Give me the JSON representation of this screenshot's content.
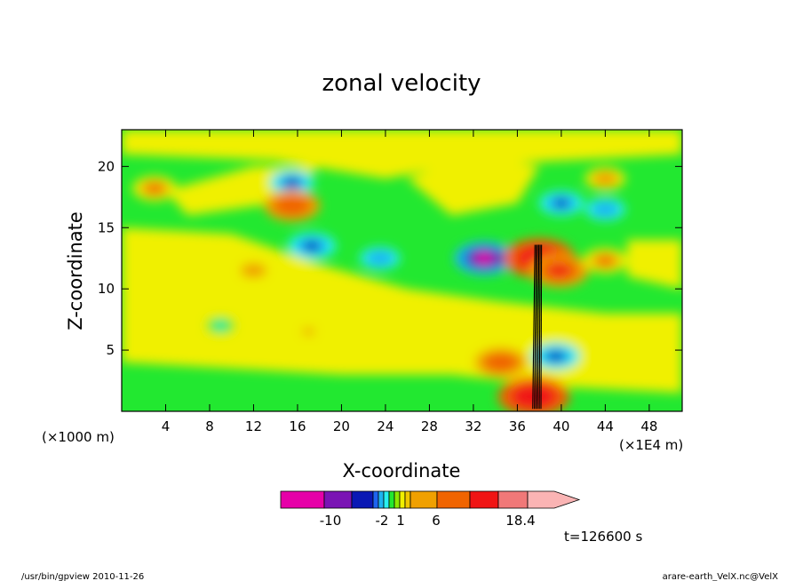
{
  "chart_data": {
    "type": "heatmap",
    "title": "zonal velocity",
    "xlabel": "X-coordinate",
    "ylabel": "Z-coordinate",
    "x_unit": "(×1E4 m)",
    "y_unit": "(×1000 m)",
    "xlim": [
      0,
      51
    ],
    "ylim": [
      0,
      23
    ],
    "x_ticks": [
      4,
      8,
      12,
      16,
      20,
      24,
      28,
      32,
      36,
      40,
      44,
      48
    ],
    "y_ticks": [
      5,
      10,
      15,
      20
    ],
    "colorbar": {
      "colors": [
        "#e600a8",
        "#7a14b4",
        "#0a18b4",
        "#1e64f0",
        "#1eb4f0",
        "#28f0f0",
        "#22e830",
        "#8ce800",
        "#f0f000",
        "#f0c800",
        "#f0a000",
        "#f06400",
        "#f01414",
        "#f07878",
        "#fab4b4"
      ],
      "tick_labels": [
        "-10",
        "-2",
        "1",
        "6",
        "18.4"
      ],
      "tick_values": [
        -10,
        -2,
        1,
        6,
        18.4
      ],
      "max": 18.4
    },
    "time_label": "t=126600 s",
    "features": [
      {
        "x": 3,
        "z": 18.2,
        "value": 5
      },
      {
        "x": 15.5,
        "z": 18.7,
        "value": -5
      },
      {
        "x": 15.5,
        "z": 16.8,
        "value": 8
      },
      {
        "x": 17.3,
        "z": 13.5,
        "value": -6
      },
      {
        "x": 23.5,
        "z": 12.5,
        "value": -4
      },
      {
        "x": 33,
        "z": 12.5,
        "value": -9
      },
      {
        "x": 38,
        "z": 12.5,
        "value": 12
      },
      {
        "x": 39.8,
        "z": 11.5,
        "value": 9
      },
      {
        "x": 44,
        "z": 12.3,
        "value": 5
      },
      {
        "x": 40,
        "z": 17,
        "value": -5
      },
      {
        "x": 44,
        "z": 16.5,
        "value": -4
      },
      {
        "x": 44,
        "z": 19,
        "value": 4
      },
      {
        "x": 39.5,
        "z": 4.5,
        "value": -6
      },
      {
        "x": 34.5,
        "z": 4,
        "value": 7
      },
      {
        "x": 37.5,
        "z": 1.2,
        "value": 12
      },
      {
        "x": 12,
        "z": 11.5,
        "value": 4
      },
      {
        "x": 17,
        "z": 6.5,
        "value": 3
      },
      {
        "x": 9,
        "z": 7,
        "value": -1
      }
    ]
  },
  "footer": {
    "left": "/usr/bin/gpview  2010-11-26",
    "right": "arare-earth_VelX.nc@VelX"
  }
}
